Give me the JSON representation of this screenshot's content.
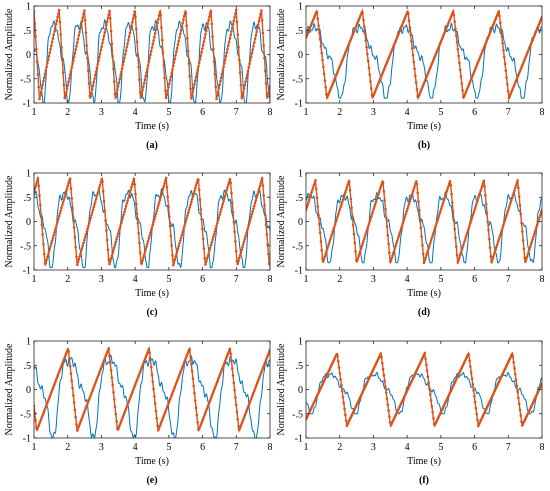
{
  "chart_data": [
    {
      "type": "line",
      "panel_label": "(a)",
      "xlabel": "Time (s)",
      "ylabel": "Normalized Amplitude",
      "xlim": [
        1,
        8
      ],
      "ylim": [
        -1,
        1
      ],
      "x_ticks": [
        1,
        2,
        3,
        4,
        5,
        6,
        7,
        8
      ],
      "y_ticks": [
        -1,
        -0.5,
        0,
        0.5,
        1
      ],
      "grid": false,
      "series": [
        {
          "color": "#0072BD",
          "style": "thin-line",
          "period": 0.75,
          "phase": 0.1,
          "amplitude": 1.0,
          "shape": "jagged"
        },
        {
          "color": "#D95319",
          "style": "line-with-dot-markers",
          "period": 0.75,
          "phase": 0.45,
          "amplitude": 0.92,
          "shape": "sawtooth"
        }
      ]
    },
    {
      "type": "line",
      "panel_label": "(b)",
      "xlabel": "Time (s)",
      "ylabel": "Normalized Amplitude",
      "xlim": [
        1,
        8
      ],
      "ylim": [
        -1,
        1
      ],
      "x_ticks": [
        1,
        2,
        3,
        4,
        5,
        6,
        7,
        8
      ],
      "y_ticks": [
        -1,
        -0.5,
        0,
        0.5,
        1
      ],
      "grid": false,
      "series": [
        {
          "color": "#0072BD",
          "style": "thin-line",
          "period": 1.35,
          "phase": 0.3,
          "amplitude": 0.9,
          "shape": "jagged"
        },
        {
          "color": "#D95319",
          "style": "line-with-dot-markers",
          "period": 1.35,
          "phase": 0.8,
          "amplitude": 0.9,
          "shape": "sawtooth"
        }
      ]
    },
    {
      "type": "line",
      "panel_label": "(c)",
      "xlabel": "Time (s)",
      "ylabel": "Normalized Amplitude",
      "xlim": [
        1,
        8
      ],
      "ylim": [
        -1,
        1
      ],
      "x_ticks": [
        1,
        2,
        3,
        4,
        5,
        6,
        7,
        8
      ],
      "y_ticks": [
        -1,
        -0.5,
        0,
        0.5,
        1
      ],
      "grid": false,
      "series": [
        {
          "color": "#0072BD",
          "style": "thin-line",
          "period": 0.95,
          "phase": 0.2,
          "amplitude": 0.95,
          "shape": "jagged"
        },
        {
          "color": "#D95319",
          "style": "line-with-dot-markers",
          "period": 0.95,
          "phase": 0.6,
          "amplitude": 0.9,
          "shape": "sawtooth"
        }
      ]
    },
    {
      "type": "line",
      "panel_label": "(d)",
      "xlabel": "Time (s)",
      "ylabel": "Normalized Amplitude",
      "xlim": [
        1,
        8
      ],
      "ylim": [
        -1,
        1
      ],
      "x_ticks": [
        1,
        2,
        3,
        4,
        5,
        6,
        7,
        8
      ],
      "y_ticks": [
        -1,
        -0.5,
        0,
        0.5,
        1
      ],
      "grid": false,
      "series": [
        {
          "color": "#0072BD",
          "style": "thin-line",
          "period": 1.0,
          "phase": 0.1,
          "amplitude": 0.85,
          "shape": "jagged"
        },
        {
          "color": "#D95319",
          "style": "line-with-dot-markers",
          "period": 1.0,
          "phase": 0.5,
          "amplitude": 0.85,
          "shape": "sawtooth"
        }
      ]
    },
    {
      "type": "line",
      "panel_label": "(e)",
      "xlabel": "Time (s)",
      "ylabel": "Normalized Amplitude",
      "xlim": [
        1,
        8
      ],
      "ylim": [
        -1,
        1
      ],
      "x_ticks": [
        1,
        2,
        3,
        4,
        5,
        6,
        7,
        8
      ],
      "y_ticks": [
        -1,
        -0.5,
        0,
        0.5,
        1
      ],
      "grid": false,
      "series": [
        {
          "color": "#0072BD",
          "style": "thin-line",
          "period": 1.2,
          "phase": 0.5,
          "amplitude": 1.0,
          "shape": "jagged"
        },
        {
          "color": "#D95319",
          "style": "line-with-dot-markers",
          "period": 1.2,
          "phase": 0.1,
          "amplitude": 0.85,
          "shape": "sawtooth"
        }
      ]
    },
    {
      "type": "line",
      "panel_label": "(f)",
      "xlabel": "Time (s)",
      "ylabel": "Normalized Amplitude",
      "xlim": [
        1,
        8
      ],
      "ylim": [
        -1,
        1
      ],
      "x_ticks": [
        1,
        2,
        3,
        4,
        5,
        6,
        7,
        8
      ],
      "y_ticks": [
        -1,
        -0.5,
        0,
        0.5,
        1
      ],
      "grid": false,
      "series": [
        {
          "color": "#0072BD",
          "style": "thin-line",
          "period": 1.3,
          "phase": 0.9,
          "amplitude": 0.5,
          "shape": "jagged"
        },
        {
          "color": "#D95319",
          "style": "line-with-dot-markers",
          "period": 1.3,
          "phase": 0.3,
          "amplitude": 0.75,
          "shape": "sawtooth"
        }
      ]
    }
  ]
}
